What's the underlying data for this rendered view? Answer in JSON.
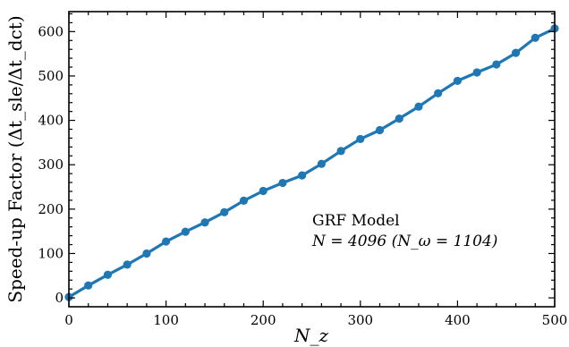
{
  "chart_data": {
    "type": "line",
    "title": "",
    "xlabel": "N_z",
    "ylabel": "Speed-up Factor (Δt_sle/Δt_dct)",
    "xlim": [
      0,
      500
    ],
    "ylim": [
      -20,
      645
    ],
    "x_ticks": [
      0,
      100,
      200,
      300,
      400,
      500
    ],
    "y_ticks": [
      0,
      100,
      200,
      300,
      400,
      500,
      600
    ],
    "grid": false,
    "series": [
      {
        "color": "#1f77b4",
        "x": [
          0,
          20,
          40,
          60,
          80,
          100,
          120,
          140,
          160,
          180,
          200,
          220,
          240,
          260,
          280,
          300,
          320,
          340,
          360,
          380,
          400,
          420,
          440,
          460,
          480,
          500
        ],
        "y": [
          2,
          28,
          52,
          75,
          100,
          127,
          149,
          170,
          193,
          219,
          241,
          259,
          276,
          302,
          331,
          358,
          378,
          404,
          431,
          461,
          489,
          508,
          526,
          552,
          586,
          607
        ]
      }
    ],
    "annotation": {
      "line1": "GRF Model",
      "line2": "N = 4096 (N_ω = 1104)"
    }
  }
}
